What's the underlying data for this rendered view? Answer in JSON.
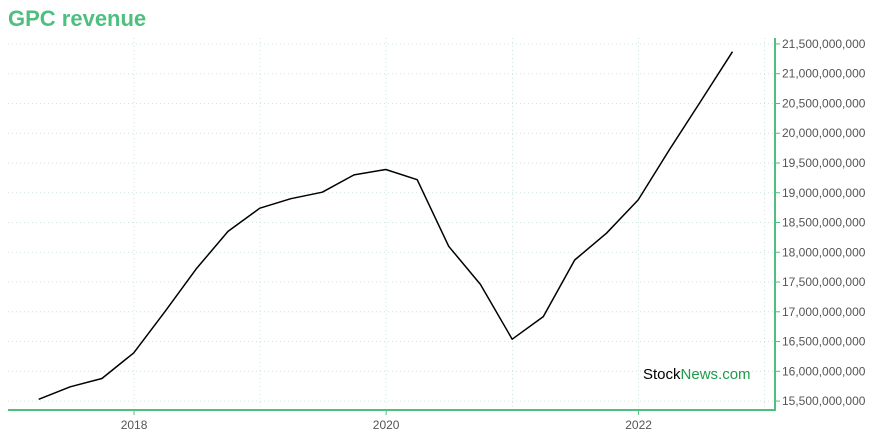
{
  "chart_data": {
    "type": "line",
    "title": "GPC revenue",
    "xlabel": "",
    "ylabel": "",
    "x_ticks": [
      "2018",
      "2020",
      "2022"
    ],
    "y_ticks": [
      "15,500,000,000",
      "16,000,000,000",
      "16,500,000,000",
      "17,000,000,000",
      "17,500,000,000",
      "18,000,000,000",
      "18,500,000,000",
      "19,000,000,000",
      "19,500,000,000",
      "20,000,000,000",
      "20,500,000,000",
      "21,000,000,000",
      "21,500,000,000"
    ],
    "ylim": [
      15350000000,
      21600000000
    ],
    "xlim": [
      "2017-01-01",
      "2023-01-31"
    ],
    "grid": true,
    "series": [
      {
        "color": "#000000",
        "points": [
          {
            "x": "2017-03-31",
            "y": 15530000000
          },
          {
            "x": "2017-06-30",
            "y": 15740000000
          },
          {
            "x": "2017-09-30",
            "y": 15880000000
          },
          {
            "x": "2017-12-31",
            "y": 16310000000
          },
          {
            "x": "2018-03-31",
            "y": 17000000000
          },
          {
            "x": "2018-06-30",
            "y": 17720000000
          },
          {
            "x": "2018-09-30",
            "y": 18350000000
          },
          {
            "x": "2018-12-31",
            "y": 18740000000
          },
          {
            "x": "2019-03-31",
            "y": 18900000000
          },
          {
            "x": "2019-06-30",
            "y": 19010000000
          },
          {
            "x": "2019-09-30",
            "y": 19300000000
          },
          {
            "x": "2019-12-31",
            "y": 19390000000
          },
          {
            "x": "2020-03-31",
            "y": 19220000000
          },
          {
            "x": "2020-06-30",
            "y": 18100000000
          },
          {
            "x": "2020-09-30",
            "y": 17460000000
          },
          {
            "x": "2020-12-31",
            "y": 16540000000
          },
          {
            "x": "2021-03-31",
            "y": 16920000000
          },
          {
            "x": "2021-06-30",
            "y": 17870000000
          },
          {
            "x": "2021-09-30",
            "y": 18320000000
          },
          {
            "x": "2021-12-31",
            "y": 18880000000
          },
          {
            "x": "2022-03-31",
            "y": 19720000000
          },
          {
            "x": "2022-06-30",
            "y": 20540000000
          },
          {
            "x": "2022-09-30",
            "y": 21370000000
          }
        ]
      }
    ]
  },
  "watermark": {
    "part1": "Stock",
    "part2": "News",
    "part3": ".com"
  },
  "colors": {
    "accent": "#4fbf7f",
    "grid": "#cfe3dc",
    "line": "#000000"
  }
}
